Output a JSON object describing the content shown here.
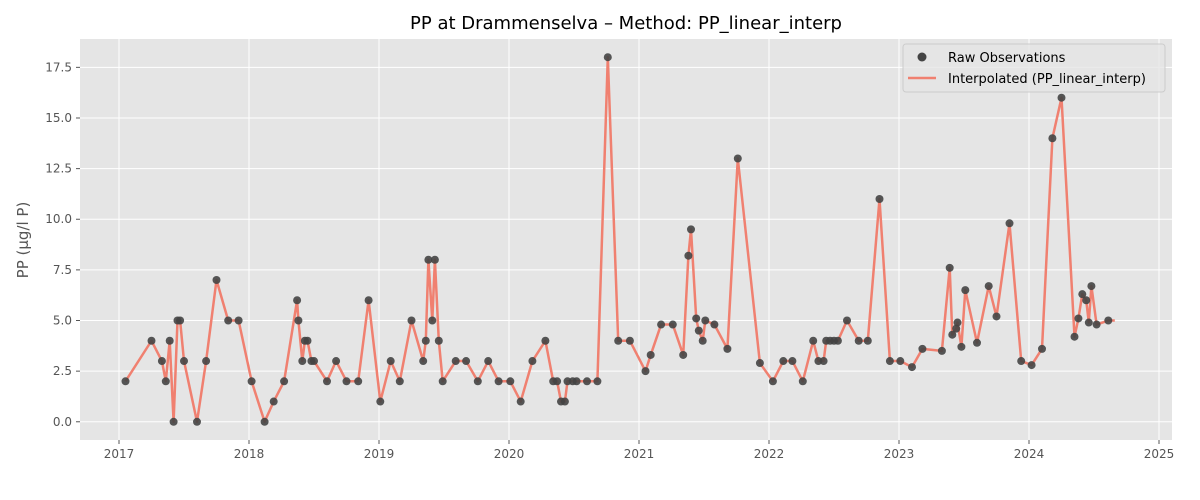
{
  "chart_data": {
    "type": "line",
    "title": "PP at Drammenselva – Method: PP_linear_interp",
    "xlabel": "",
    "ylabel": "PP (µg/l P)",
    "xlim": [
      2016.7,
      2025.1
    ],
    "ylim": [
      -0.9,
      18.9
    ],
    "xticks": [
      2017,
      2018,
      2019,
      2020,
      2021,
      2022,
      2023,
      2024,
      2025
    ],
    "xtick_labels": [
      "2017",
      "2018",
      "2019",
      "2020",
      "2021",
      "2022",
      "2023",
      "2024",
      "2025"
    ],
    "yticks": [
      0,
      2.5,
      5,
      7.5,
      10,
      12.5,
      15,
      17.5
    ],
    "ytick_labels": [
      "0.0",
      "2.5",
      "5.0",
      "7.5",
      "10.0",
      "12.5",
      "15.0",
      "17.5"
    ],
    "grid": true,
    "legend_position": "top-right",
    "colors": {
      "background": "#e5e5e5",
      "grid": "#ffffff",
      "line": "#f08070",
      "marker": "#444444"
    },
    "series": [
      {
        "name": "Raw Observations",
        "kind": "scatter",
        "points": [
          [
            2017.05,
            2.0
          ],
          [
            2017.25,
            4.0
          ],
          [
            2017.33,
            3.0
          ],
          [
            2017.36,
            2.0
          ],
          [
            2017.39,
            4.0
          ],
          [
            2017.42,
            0.0
          ],
          [
            2017.45,
            5.0
          ],
          [
            2017.47,
            5.0
          ],
          [
            2017.5,
            3.0
          ],
          [
            2017.6,
            0.0
          ],
          [
            2017.67,
            3.0
          ],
          [
            2017.75,
            7.0
          ],
          [
            2017.84,
            5.0
          ],
          [
            2017.92,
            5.0
          ],
          [
            2018.02,
            2.0
          ],
          [
            2018.12,
            0.0
          ],
          [
            2018.19,
            1.0
          ],
          [
            2018.27,
            2.0
          ],
          [
            2018.37,
            6.0
          ],
          [
            2018.38,
            5.0
          ],
          [
            2018.41,
            3.0
          ],
          [
            2018.43,
            4.0
          ],
          [
            2018.45,
            4.0
          ],
          [
            2018.48,
            3.0
          ],
          [
            2018.5,
            3.0
          ],
          [
            2018.6,
            2.0
          ],
          [
            2018.67,
            3.0
          ],
          [
            2018.75,
            2.0
          ],
          [
            2018.84,
            2.0
          ],
          [
            2018.92,
            6.0
          ],
          [
            2019.01,
            1.0
          ],
          [
            2019.09,
            3.0
          ],
          [
            2019.16,
            2.0
          ],
          [
            2019.25,
            5.0
          ],
          [
            2019.34,
            3.0
          ],
          [
            2019.36,
            4.0
          ],
          [
            2019.38,
            8.0
          ],
          [
            2019.41,
            5.0
          ],
          [
            2019.43,
            8.0
          ],
          [
            2019.46,
            4.0
          ],
          [
            2019.49,
            2.0
          ],
          [
            2019.59,
            3.0
          ],
          [
            2019.67,
            3.0
          ],
          [
            2019.76,
            2.0
          ],
          [
            2019.84,
            3.0
          ],
          [
            2019.92,
            2.0
          ],
          [
            2020.01,
            2.0
          ],
          [
            2020.09,
            1.0
          ],
          [
            2020.18,
            3.0
          ],
          [
            2020.28,
            4.0
          ],
          [
            2020.34,
            2.0
          ],
          [
            2020.37,
            2.0
          ],
          [
            2020.4,
            1.0
          ],
          [
            2020.43,
            1.0
          ],
          [
            2020.45,
            2.0
          ],
          [
            2020.49,
            2.0
          ],
          [
            2020.52,
            2.0
          ],
          [
            2020.6,
            2.0
          ],
          [
            2020.68,
            2.0
          ],
          [
            2020.76,
            18.0
          ],
          [
            2020.84,
            4.0
          ],
          [
            2020.93,
            4.0
          ],
          [
            2021.05,
            2.5
          ],
          [
            2021.09,
            3.3
          ],
          [
            2021.17,
            4.8
          ],
          [
            2021.26,
            4.8
          ],
          [
            2021.34,
            3.3
          ],
          [
            2021.38,
            8.2
          ],
          [
            2021.4,
            9.5
          ],
          [
            2021.44,
            5.1
          ],
          [
            2021.46,
            4.5
          ],
          [
            2021.49,
            4.0
          ],
          [
            2021.51,
            5.0
          ],
          [
            2021.58,
            4.8
          ],
          [
            2021.68,
            3.6
          ],
          [
            2021.76,
            13.0
          ],
          [
            2021.93,
            2.9
          ],
          [
            2022.03,
            2.0
          ],
          [
            2022.11,
            3.0
          ],
          [
            2022.18,
            3.0
          ],
          [
            2022.26,
            2.0
          ],
          [
            2022.34,
            4.0
          ],
          [
            2022.38,
            3.0
          ],
          [
            2022.42,
            3.0
          ],
          [
            2022.44,
            4.0
          ],
          [
            2022.47,
            4.0
          ],
          [
            2022.5,
            4.0
          ],
          [
            2022.53,
            4.0
          ],
          [
            2022.6,
            5.0
          ],
          [
            2022.69,
            4.0
          ],
          [
            2022.76,
            4.0
          ],
          [
            2022.85,
            11.0
          ],
          [
            2022.93,
            3.0
          ],
          [
            2023.01,
            3.0
          ],
          [
            2023.1,
            2.7
          ],
          [
            2023.18,
            3.6
          ],
          [
            2023.33,
            3.5
          ],
          [
            2023.39,
            7.6
          ],
          [
            2023.41,
            4.3
          ],
          [
            2023.44,
            4.6
          ],
          [
            2023.45,
            4.9
          ],
          [
            2023.48,
            3.7
          ],
          [
            2023.51,
            6.5
          ],
          [
            2023.6,
            3.9
          ],
          [
            2023.69,
            6.7
          ],
          [
            2023.75,
            5.2
          ],
          [
            2023.85,
            9.8
          ],
          [
            2023.94,
            3.0
          ],
          [
            2024.02,
            2.8
          ],
          [
            2024.1,
            3.6
          ],
          [
            2024.18,
            14.0
          ],
          [
            2024.25,
            16.0
          ],
          [
            2024.35,
            4.2
          ],
          [
            2024.38,
            5.1
          ],
          [
            2024.41,
            6.3
          ],
          [
            2024.44,
            6.0
          ],
          [
            2024.46,
            4.9
          ],
          [
            2024.48,
            6.7
          ],
          [
            2024.52,
            4.8
          ],
          [
            2024.61,
            5.0
          ]
        ]
      },
      {
        "name": "Interpolated (PP_linear_interp)",
        "kind": "line",
        "x_end": 2024.66,
        "y_end": 5.0
      }
    ]
  }
}
